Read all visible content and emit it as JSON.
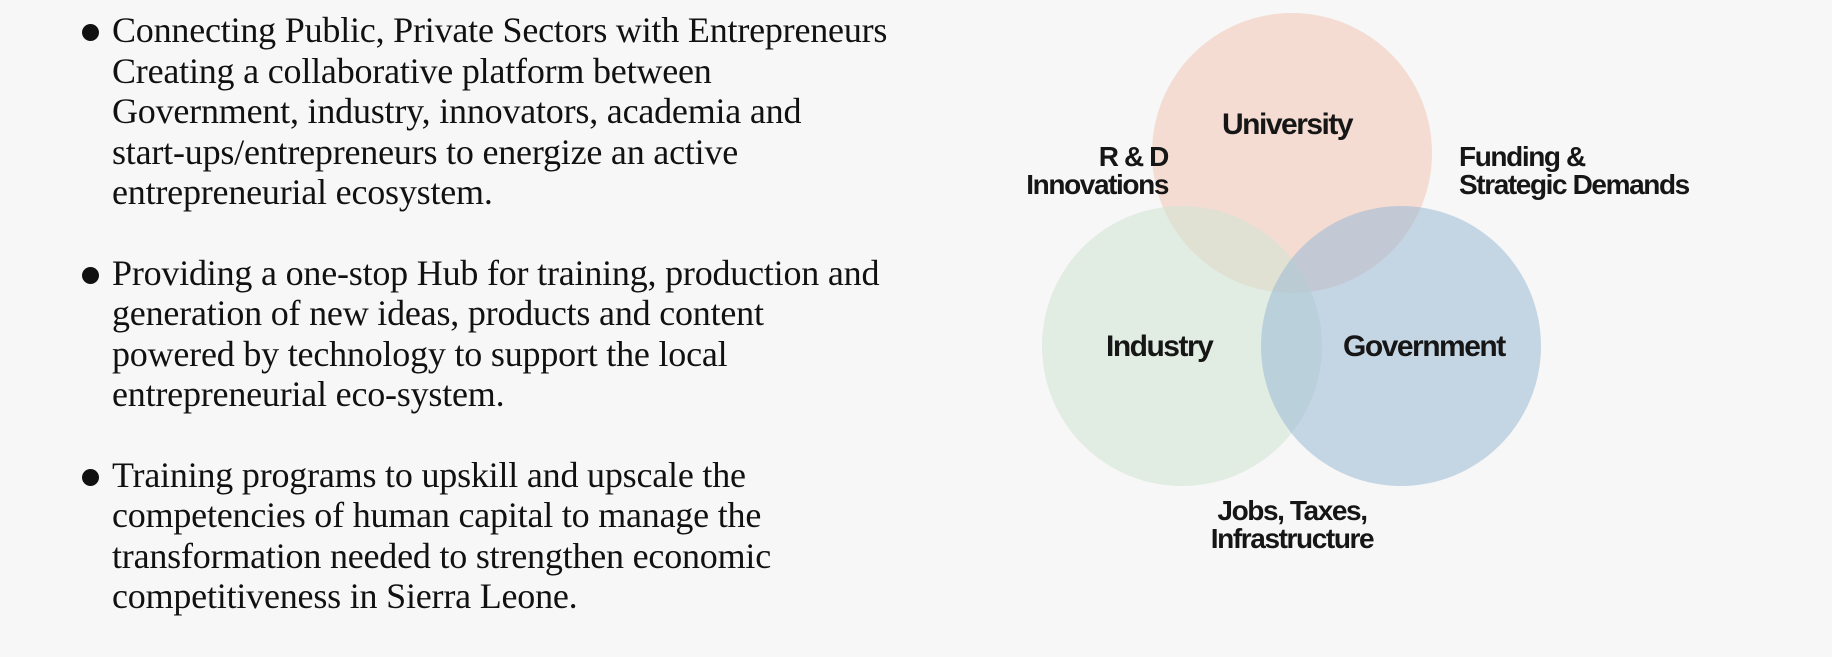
{
  "bullets": [
    {
      "lines": [
        "Connecting Public, Private Sectors with Entrepreneurs",
        "Creating a collaborative platform between",
        "Government, industry, innovators, academia and",
        "start-ups/entrepreneurs to energize an active",
        "entrepreneurial ecosystem."
      ]
    },
    {
      "lines": [
        "Providing a one-stop Hub for training, production and",
        "generation of new ideas, products and content",
        "powered by technology to support the local",
        "entrepreneurial eco-system."
      ]
    },
    {
      "lines": [
        "Training programs to upskill and upscale the",
        "competencies of human capital to manage the",
        "transformation needed to strengthen economic",
        "competitiveness in Sierra Leone."
      ]
    }
  ],
  "venn": {
    "circles": {
      "university": {
        "label": "University",
        "color": "#f2c7b5"
      },
      "industry": {
        "label": "Industry",
        "color": "#cfe3d3"
      },
      "government": {
        "label": "Government",
        "color": "#9bb9d6"
      }
    },
    "relations": {
      "rd": [
        "R & D",
        "Innovations"
      ],
      "funding": [
        "Funding &",
        "Strategic Demands"
      ],
      "jobs": [
        "Jobs, Taxes,",
        "Infrastructure"
      ]
    }
  }
}
